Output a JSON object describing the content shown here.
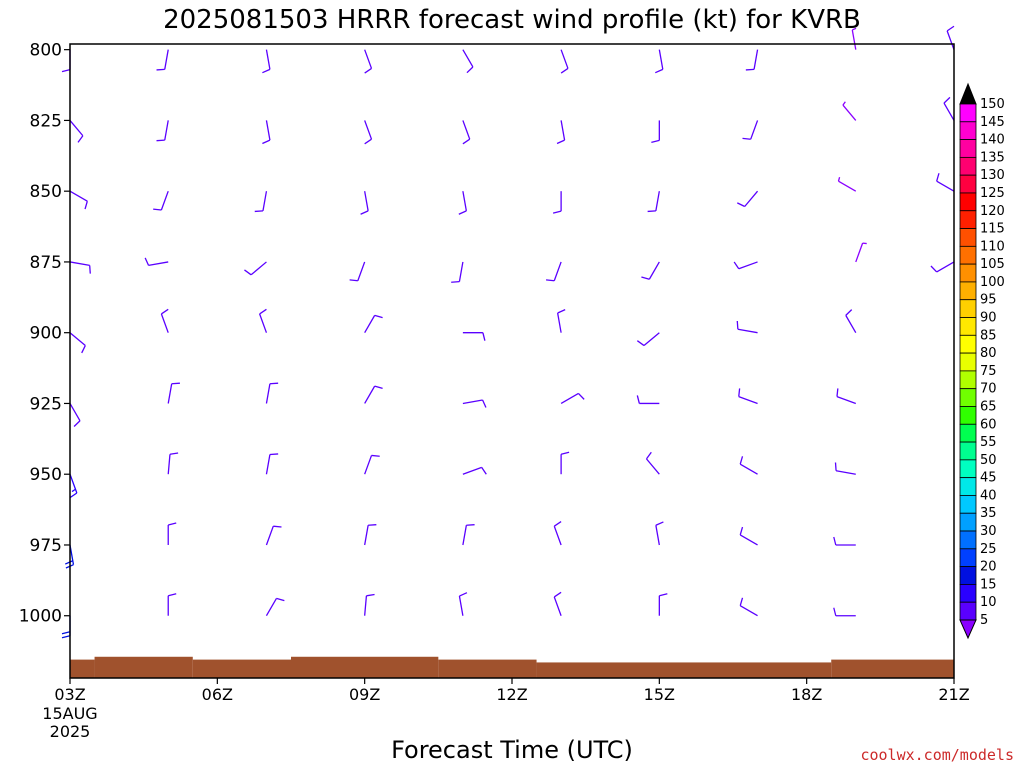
{
  "chart_data": {
    "type": "wind_barb_time_height",
    "title": "2025081503 HRRR forecast wind profile (kt) for KVRB",
    "xlabel": "Forecast Time (UTC)",
    "ylabel": "",
    "x_ticks": [
      {
        "label": "03Z",
        "hour": 3
      },
      {
        "label": "06Z",
        "hour": 6
      },
      {
        "label": "09Z",
        "hour": 9
      },
      {
        "label": "12Z",
        "hour": 12
      },
      {
        "label": "15Z",
        "hour": 15
      },
      {
        "label": "18Z",
        "hour": 18
      },
      {
        "label": "21Z",
        "hour": 21
      }
    ],
    "x_start_date_lines": [
      "15AUG",
      "2025"
    ],
    "xlim_hours": [
      3,
      21
    ],
    "y_ticks": [
      800,
      825,
      850,
      875,
      900,
      925,
      950,
      975,
      1000
    ],
    "ylim_hPa": [
      798,
      1022
    ],
    "y_scale": "linear",
    "barb_columns_hours": [
      3,
      5,
      7,
      9,
      11,
      13,
      15,
      17,
      19,
      21
    ],
    "surface_pressure_hPa": [
      {
        "from": 3,
        "to": 3.5,
        "p": 1015.5
      },
      {
        "from": 3.5,
        "to": 5.5,
        "p": 1014.5
      },
      {
        "from": 5.5,
        "to": 7.5,
        "p": 1015.5
      },
      {
        "from": 7.5,
        "to": 10.5,
        "p": 1014.5
      },
      {
        "from": 10.5,
        "to": 12.5,
        "p": 1015.5
      },
      {
        "from": 12.5,
        "to": 18.5,
        "p": 1016.5
      },
      {
        "from": 18.5,
        "to": 21,
        "p": 1015.5
      }
    ],
    "wind_barbs": [
      {
        "hour": 3,
        "levels": [
          {
            "p": 800,
            "dir": 180,
            "spd": 10
          },
          {
            "p": 825,
            "dir": 140,
            "spd": 10
          },
          {
            "p": 850,
            "dir": 120,
            "spd": 10
          },
          {
            "p": 875,
            "dir": 100,
            "spd": 10
          },
          {
            "p": 900,
            "dir": 130,
            "spd": 10
          },
          {
            "p": 925,
            "dir": 150,
            "spd": 10
          },
          {
            "p": 950,
            "dir": 160,
            "spd": 15
          },
          {
            "p": 975,
            "dir": 170,
            "spd": 20
          },
          {
            "p": 1000,
            "dir": 180,
            "spd": 20
          }
        ]
      },
      {
        "hour": 5,
        "levels": [
          {
            "p": 800,
            "dir": 190,
            "spd": 10
          },
          {
            "p": 825,
            "dir": 190,
            "spd": 10
          },
          {
            "p": 850,
            "dir": 200,
            "spd": 10
          },
          {
            "p": 875,
            "dir": 260,
            "spd": 10
          },
          {
            "p": 900,
            "dir": 340,
            "spd": 10
          },
          {
            "p": 925,
            "dir": 10,
            "spd": 10
          },
          {
            "p": 950,
            "dir": 5,
            "spd": 10
          },
          {
            "p": 975,
            "dir": 0,
            "spd": 10
          },
          {
            "p": 1000,
            "dir": 360,
            "spd": 10
          }
        ]
      },
      {
        "hour": 7,
        "levels": [
          {
            "p": 800,
            "dir": 170,
            "spd": 10
          },
          {
            "p": 825,
            "dir": 170,
            "spd": 10
          },
          {
            "p": 850,
            "dir": 190,
            "spd": 10
          },
          {
            "p": 875,
            "dir": 230,
            "spd": 10
          },
          {
            "p": 900,
            "dir": 340,
            "spd": 10
          },
          {
            "p": 925,
            "dir": 10,
            "spd": 10
          },
          {
            "p": 950,
            "dir": 10,
            "spd": 10
          },
          {
            "p": 975,
            "dir": 20,
            "spd": 10
          },
          {
            "p": 1000,
            "dir": 30,
            "spd": 10
          }
        ]
      },
      {
        "hour": 9,
        "levels": [
          {
            "p": 800,
            "dir": 160,
            "spd": 10
          },
          {
            "p": 825,
            "dir": 160,
            "spd": 10
          },
          {
            "p": 850,
            "dir": 170,
            "spd": 10
          },
          {
            "p": 875,
            "dir": 200,
            "spd": 10
          },
          {
            "p": 900,
            "dir": 30,
            "spd": 10
          },
          {
            "p": 925,
            "dir": 30,
            "spd": 10
          },
          {
            "p": 950,
            "dir": 20,
            "spd": 10
          },
          {
            "p": 975,
            "dir": 10,
            "spd": 10
          },
          {
            "p": 1000,
            "dir": 5,
            "spd": 10
          }
        ]
      },
      {
        "hour": 11,
        "levels": [
          {
            "p": 800,
            "dir": 150,
            "spd": 10
          },
          {
            "p": 825,
            "dir": 160,
            "spd": 10
          },
          {
            "p": 850,
            "dir": 170,
            "spd": 10
          },
          {
            "p": 875,
            "dir": 190,
            "spd": 10
          },
          {
            "p": 900,
            "dir": 90,
            "spd": 10
          },
          {
            "p": 925,
            "dir": 80,
            "spd": 10
          },
          {
            "p": 950,
            "dir": 70,
            "spd": 10
          },
          {
            "p": 975,
            "dir": 10,
            "spd": 10
          },
          {
            "p": 1000,
            "dir": 350,
            "spd": 10
          }
        ]
      },
      {
        "hour": 13,
        "levels": [
          {
            "p": 800,
            "dir": 160,
            "spd": 10
          },
          {
            "p": 825,
            "dir": 170,
            "spd": 10
          },
          {
            "p": 850,
            "dir": 180,
            "spd": 10
          },
          {
            "p": 875,
            "dir": 200,
            "spd": 10
          },
          {
            "p": 900,
            "dir": 350,
            "spd": 10
          },
          {
            "p": 925,
            "dir": 60,
            "spd": 10
          },
          {
            "p": 950,
            "dir": 0,
            "spd": 10
          },
          {
            "p": 975,
            "dir": 340,
            "spd": 10
          },
          {
            "p": 1000,
            "dir": 340,
            "spd": 10
          }
        ]
      },
      {
        "hour": 15,
        "levels": [
          {
            "p": 800,
            "dir": 170,
            "spd": 10
          },
          {
            "p": 825,
            "dir": 180,
            "spd": 10
          },
          {
            "p": 850,
            "dir": 190,
            "spd": 10
          },
          {
            "p": 875,
            "dir": 210,
            "spd": 10
          },
          {
            "p": 900,
            "dir": 230,
            "spd": 10
          },
          {
            "p": 925,
            "dir": 270,
            "spd": 10
          },
          {
            "p": 950,
            "dir": 320,
            "spd": 10
          },
          {
            "p": 975,
            "dir": 350,
            "spd": 10
          },
          {
            "p": 1000,
            "dir": 360,
            "spd": 10
          }
        ]
      },
      {
        "hour": 17,
        "levels": [
          {
            "p": 800,
            "dir": 190,
            "spd": 10
          },
          {
            "p": 825,
            "dir": 200,
            "spd": 10
          },
          {
            "p": 850,
            "dir": 220,
            "spd": 10
          },
          {
            "p": 875,
            "dir": 250,
            "spd": 10
          },
          {
            "p": 900,
            "dir": 280,
            "spd": 10
          },
          {
            "p": 925,
            "dir": 290,
            "spd": 10
          },
          {
            "p": 950,
            "dir": 300,
            "spd": 10
          },
          {
            "p": 975,
            "dir": 300,
            "spd": 10
          },
          {
            "p": 1000,
            "dir": 300,
            "spd": 10
          }
        ]
      },
      {
        "hour": 19,
        "levels": [
          {
            "p": 800,
            "dir": 350,
            "spd": 5
          },
          {
            "p": 825,
            "dir": 320,
            "spd": 5
          },
          {
            "p": 850,
            "dir": 300,
            "spd": 5
          },
          {
            "p": 875,
            "dir": 20,
            "spd": 5
          },
          {
            "p": 900,
            "dir": 330,
            "spd": 10
          },
          {
            "p": 925,
            "dir": 290,
            "spd": 10
          },
          {
            "p": 950,
            "dir": 280,
            "spd": 10
          },
          {
            "p": 975,
            "dir": 270,
            "spd": 10
          },
          {
            "p": 1000,
            "dir": 270,
            "spd": 10
          }
        ]
      },
      {
        "hour": 21,
        "levels": [
          {
            "p": 800,
            "dir": 340,
            "spd": 10
          },
          {
            "p": 825,
            "dir": 330,
            "spd": 10
          },
          {
            "p": 850,
            "dir": 300,
            "spd": 10
          },
          {
            "p": 875,
            "dir": 240,
            "spd": 10
          }
        ]
      }
    ],
    "colorbar": {
      "units": "kt",
      "levels": [
        5,
        10,
        15,
        20,
        25,
        30,
        35,
        40,
        45,
        50,
        55,
        60,
        65,
        70,
        75,
        80,
        85,
        90,
        95,
        100,
        105,
        110,
        115,
        120,
        125,
        130,
        135,
        140,
        145,
        150
      ],
      "colors": [
        "#8a00ff",
        "#5a00ff",
        "#2a00ff",
        "#0010e0",
        "#0040ff",
        "#0070ff",
        "#00a0ff",
        "#00c8ff",
        "#00e8e8",
        "#00ffc0",
        "#00ff90",
        "#00ff50",
        "#30ff00",
        "#70ff00",
        "#b0ff00",
        "#e8ff00",
        "#ffff00",
        "#ffe800",
        "#ffd000",
        "#ffb000",
        "#ff9000",
        "#ff7000",
        "#ff5000",
        "#ff2000",
        "#ff0000",
        "#ff0040",
        "#ff0070",
        "#ff00a0",
        "#ff00d0",
        "#ff00ff"
      ],
      "top_arrow_color": "#000000"
    }
  },
  "credit": "coolwx.com/models"
}
